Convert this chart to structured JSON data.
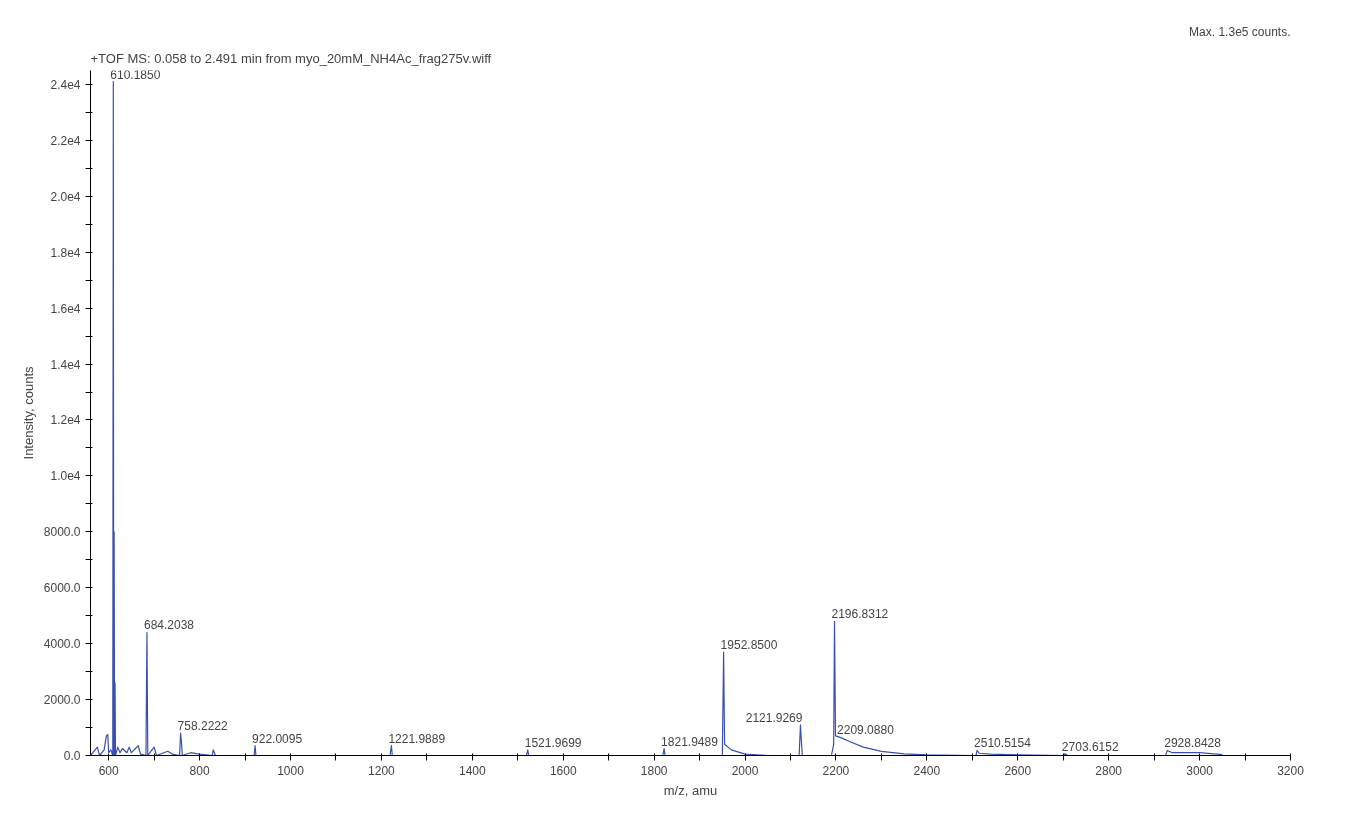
{
  "chart_data": {
    "type": "line",
    "title": "+TOF MS: 0.058 to 2.491 min from myo_20mM_NH4Ac_frag275v.wiff",
    "xlabel": "m/z, amu",
    "ylabel": "Intensity, counts",
    "annotations": [
      "Max. 1.3e5 counts.",
      {
        "text": "610.1850",
        "x": 610.19,
        "y": 24100
      },
      {
        "text": "684.2038",
        "x": 684.2,
        "y": 4400
      },
      {
        "text": "758.2222",
        "x": 758.22,
        "y": 800
      },
      {
        "text": "922.0095",
        "x": 922.0,
        "y": 350
      },
      {
        "text": "1221.9889",
        "x": 1221.99,
        "y": 350
      },
      {
        "text": "1521.9699",
        "x": 1521.97,
        "y": 200
      },
      {
        "text": "1821.9489",
        "x": 1821.95,
        "y": 250
      },
      {
        "text": "1952.8500",
        "x": 1952.85,
        "y": 3700
      },
      {
        "text": "2121.9269",
        "x": 2121.93,
        "y": 1100
      },
      {
        "text": "2196.8312",
        "x": 2196.83,
        "y": 4800
      },
      {
        "text": "2209.0880",
        "x": 2209.09,
        "y": 650
      },
      {
        "text": "2510.5154",
        "x": 2510.52,
        "y": 180
      },
      {
        "text": "2703.6152",
        "x": 2703.62,
        "y": 60
      },
      {
        "text": "2928.8428",
        "x": 2928.84,
        "y": 180
      }
    ],
    "x": [
      560,
      575,
      580,
      590,
      595,
      598,
      600,
      605,
      609,
      610.19,
      611,
      612,
      613,
      614,
      615,
      620,
      625,
      630,
      640,
      645,
      650,
      665,
      670,
      682,
      684.2,
      686,
      700,
      705,
      730,
      740,
      756,
      758.22,
      760,
      762,
      780,
      800,
      828,
      830,
      835,
      920,
      922,
      924,
      1219,
      1221.99,
      1224,
      1519,
      1521.97,
      1524,
      1819,
      1821.95,
      1824,
      1950,
      1952.85,
      1955,
      1970,
      2000,
      2050,
      2119,
      2121.93,
      2124,
      2126,
      2190,
      2195,
      2196.83,
      2199,
      2209.09,
      2230,
      2260,
      2300,
      2350,
      2400,
      2500,
      2508,
      2510.52,
      2515,
      2540,
      2600,
      2700,
      2703.62,
      2710,
      2925,
      2928.84,
      2940,
      3000,
      3050
    ],
    "series": [
      {
        "color": "#3a50b0",
        "values": [
          0,
          300,
          0,
          200,
          700,
          750,
          100,
          200,
          0,
          24100,
          0,
          8000,
          0,
          2600,
          0,
          300,
          100,
          250,
          100,
          300,
          100,
          350,
          50,
          0,
          4400,
          0,
          300,
          0,
          150,
          50,
          0,
          800,
          500,
          0,
          100,
          50,
          0,
          200,
          0,
          0,
          350,
          0,
          0,
          350,
          0,
          0,
          200,
          0,
          0,
          250,
          0,
          0,
          3700,
          400,
          200,
          50,
          0,
          0,
          1100,
          500,
          0,
          0,
          400,
          4800,
          700,
          650,
          500,
          300,
          150,
          60,
          20,
          0,
          0,
          180,
          80,
          50,
          20,
          0,
          60,
          0,
          0,
          180,
          100,
          100,
          30
        ]
      }
    ],
    "xlim": [
      560,
      3200
    ],
    "ylim": [
      0,
      24500
    ],
    "xticks": [
      600,
      {
        "value": 700,
        "label": null
      },
      800,
      {
        "value": 900,
        "label": null
      },
      1000,
      {
        "value": 1100,
        "label": null
      },
      1200,
      {
        "value": 1300,
        "label": null
      },
      1400,
      {
        "value": 1500,
        "label": null
      },
      1600,
      {
        "value": 1700,
        "label": null
      },
      1800,
      {
        "value": 1900,
        "label": null
      },
      2000,
      {
        "value": 2100,
        "label": null
      },
      2200,
      {
        "value": 2300,
        "label": null
      },
      2400,
      {
        "value": 2500,
        "label": null
      },
      2600,
      {
        "value": 2700,
        "label": null
      },
      2800,
      {
        "value": 2900,
        "label": null
      },
      3000,
      {
        "value": 3100,
        "label": null
      },
      3200
    ],
    "yticks": [
      {
        "value": 0,
        "label": "0.0"
      },
      {
        "value": 1000,
        "label": null
      },
      {
        "value": 2000,
        "label": "2000.0"
      },
      {
        "value": 3000,
        "label": null
      },
      {
        "value": 4000,
        "label": "4000.0"
      },
      {
        "value": 5000,
        "label": null
      },
      {
        "value": 6000,
        "label": "6000.0"
      },
      {
        "value": 7000,
        "label": null
      },
      {
        "value": 8000,
        "label": "8000.0"
      },
      {
        "value": 9000,
        "label": null
      },
      {
        "value": 10000,
        "label": "1.0e4"
      },
      {
        "value": 11000,
        "label": null
      },
      {
        "value": 12000,
        "label": "1.2e4"
      },
      {
        "value": 13000,
        "label": null
      },
      {
        "value": 14000,
        "label": "1.4e4"
      },
      {
        "value": 15000,
        "label": null
      },
      {
        "value": 16000,
        "label": "1.6e4"
      },
      {
        "value": 17000,
        "label": null
      },
      {
        "value": 18000,
        "label": "1.8e4"
      },
      {
        "value": 19000,
        "label": null
      },
      {
        "value": 20000,
        "label": "2.0e4"
      },
      {
        "value": 21000,
        "label": null
      },
      {
        "value": 22000,
        "label": "2.2e4"
      },
      {
        "value": 23000,
        "label": null
      },
      {
        "value": 24000,
        "label": "2.4e4"
      }
    ],
    "grid": false,
    "marker": "none",
    "line_style": "solid"
  }
}
